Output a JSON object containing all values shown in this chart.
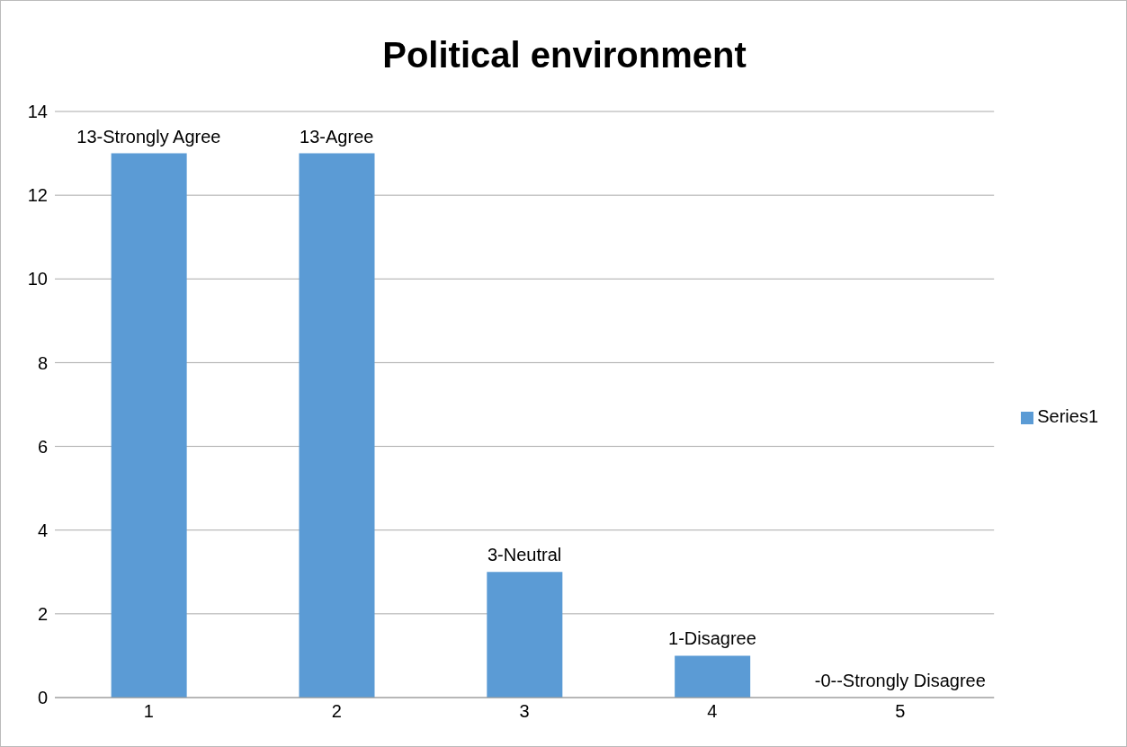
{
  "chart_data": {
    "type": "bar",
    "title": "Political environment",
    "categories": [
      "1",
      "2",
      "3",
      "4",
      "5"
    ],
    "series": [
      {
        "name": "Series1",
        "color": "#5b9bd5",
        "values": [
          13,
          13,
          3,
          1,
          0
        ]
      }
    ],
    "ylim": [
      0,
      14
    ],
    "yticks": [
      0,
      2,
      4,
      6,
      8,
      10,
      12,
      14
    ],
    "grid": "y",
    "legend": "right",
    "annotations": [
      {
        "text": "13-Strongly Agree",
        "x": "1",
        "y": 13
      },
      {
        "text": "13-Agree",
        "x": "2",
        "y": 13
      },
      {
        "text": "3-Neutral",
        "x": "3",
        "y": 3
      },
      {
        "text": "1-Disagree",
        "x": "4",
        "y": 1
      },
      {
        "text": "-0--Strongly Disagree",
        "x": "5",
        "y": 0
      }
    ]
  }
}
